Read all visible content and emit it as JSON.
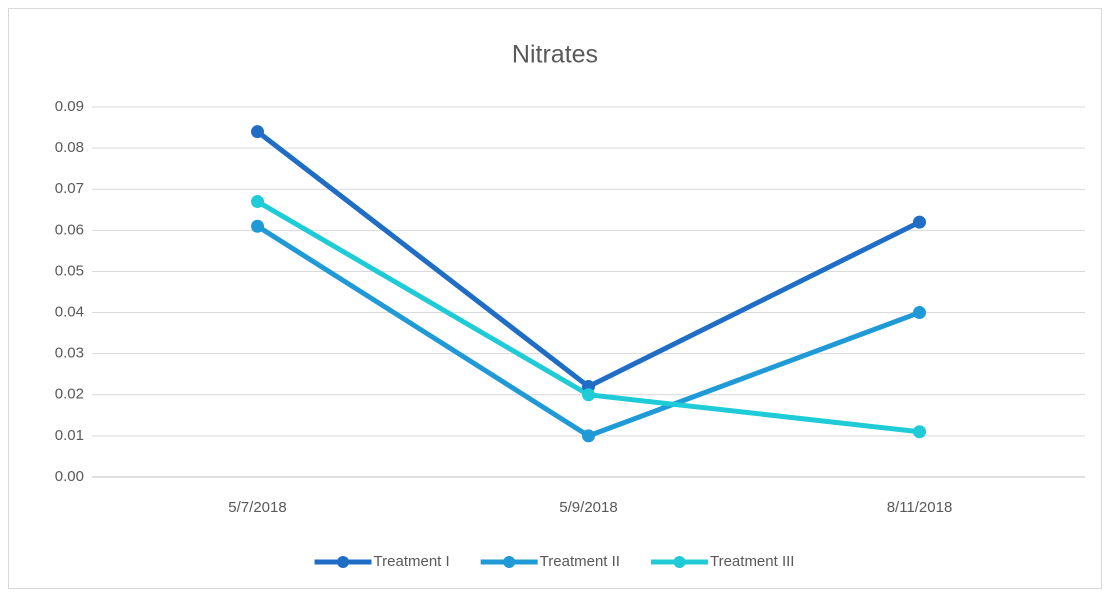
{
  "chart_data": {
    "type": "line",
    "title": "Nitrates",
    "categories": [
      "5/7/2018",
      "5/9/2018",
      "8/11/2018"
    ],
    "series": [
      {
        "name": "Treatment I",
        "color": "#1f6dc4",
        "values": [
          0.084,
          0.022,
          0.062
        ]
      },
      {
        "name": "Treatment II",
        "color": "#1f9ad6",
        "values": [
          0.061,
          0.01,
          0.04
        ]
      },
      {
        "name": "Treatment III",
        "color": "#1ecbd6",
        "values": [
          0.067,
          0.02,
          0.011
        ]
      }
    ],
    "ylim": [
      0,
      0.09
    ],
    "yticks": [
      {
        "value": 0,
        "label": "0.00"
      },
      0.01,
      0.02,
      0.03,
      0.04,
      0.05,
      0.06,
      0.07,
      0.08,
      0.09
    ],
    "grid": true,
    "legend": "bottom"
  }
}
